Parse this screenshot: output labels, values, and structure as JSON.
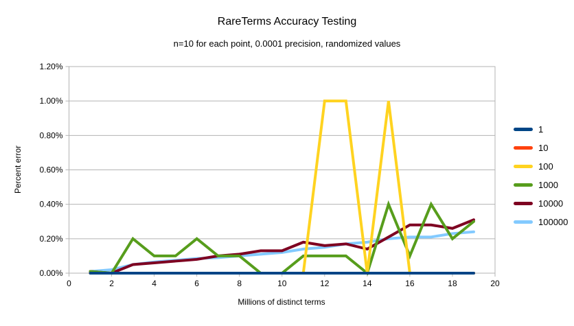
{
  "chart_data": {
    "type": "line",
    "title": "RareTerms Accuracy Testing",
    "subtitle": "n=10 for each point, 0.0001 precision, randomized values",
    "xlabel": "Millions of distinct terms",
    "ylabel": "Percent error",
    "grid": "horizontal",
    "legend_position": "right",
    "xlim": [
      0,
      20
    ],
    "ylim_percent": [
      0,
      1.2
    ],
    "x_tick_values": [
      0,
      2,
      4,
      6,
      8,
      10,
      12,
      14,
      16,
      18,
      20
    ],
    "x_tick_labels": [
      "0",
      "2",
      "4",
      "6",
      "8",
      "10",
      "12",
      "14",
      "16",
      "18",
      "20"
    ],
    "y_tick_values": [
      0,
      0.2,
      0.4,
      0.6,
      0.8,
      1.0,
      1.2
    ],
    "y_tick_labels": [
      "0.00%",
      "0.20%",
      "0.40%",
      "0.60%",
      "0.80%",
      "1.00%",
      "1.20%"
    ],
    "x": [
      1,
      2,
      3,
      4,
      5,
      6,
      7,
      8,
      9,
      10,
      11,
      12,
      13,
      14,
      15,
      16,
      17,
      18,
      19
    ],
    "series": [
      {
        "name": "1",
        "color": "#004586",
        "values_percent": [
          0,
          0,
          0,
          0,
          0,
          0,
          0,
          0,
          0,
          0,
          0,
          0,
          0,
          0,
          0,
          0,
          0,
          0,
          0
        ]
      },
      {
        "name": "10",
        "color": "#ff420e",
        "values_percent": [
          0,
          0,
          0,
          0,
          0,
          0,
          0,
          0,
          0,
          0,
          0,
          0,
          0,
          0,
          0,
          0,
          0,
          0,
          0
        ]
      },
      {
        "name": "100",
        "color": "#ffd320",
        "values_percent": [
          0,
          0,
          0,
          0,
          0,
          0,
          0,
          0,
          0,
          0,
          0,
          1.0,
          1.0,
          0,
          1.0,
          0,
          0,
          0,
          0
        ]
      },
      {
        "name": "1000",
        "color": "#579d1c",
        "values_percent": [
          0.01,
          0,
          0.2,
          0.1,
          0.1,
          0.2,
          0.1,
          0.1,
          0,
          0,
          0.1,
          0.1,
          0.1,
          0,
          0.4,
          0.1,
          0.4,
          0.2,
          0.3
        ]
      },
      {
        "name": "10000",
        "color": "#7e0021",
        "values_percent": [
          0.01,
          0,
          0.05,
          0.06,
          0.07,
          0.08,
          0.1,
          0.11,
          0.13,
          0.13,
          0.18,
          0.16,
          0.17,
          0.14,
          0.21,
          0.28,
          0.28,
          0.26,
          0.31
        ]
      },
      {
        "name": "100000",
        "color": "#83caff",
        "values_percent": [
          0.01,
          0.02,
          0.05,
          0.065,
          0.075,
          0.085,
          0.09,
          0.1,
          0.11,
          0.12,
          0.14,
          0.15,
          0.17,
          0.18,
          0.2,
          0.21,
          0.21,
          0.23,
          0.24
        ]
      }
    ],
    "colors": {
      "gridline": "#b3b3b3",
      "plot_border": "#b3b3b3",
      "tick": "#b3b3b3",
      "text": "#000000"
    }
  }
}
